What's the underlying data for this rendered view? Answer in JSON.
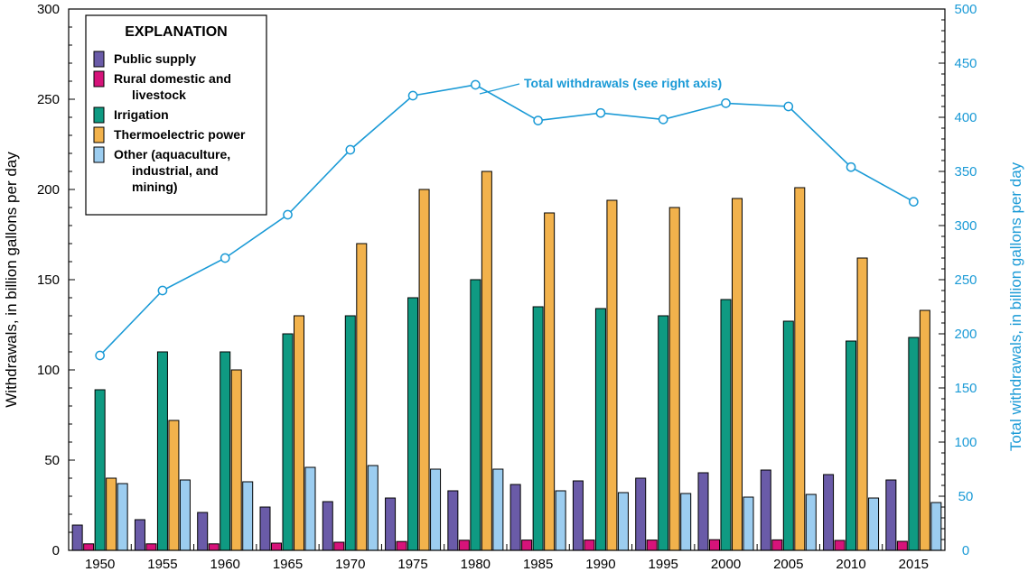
{
  "chart_data": {
    "type": "bar",
    "categories": [
      "1950",
      "1955",
      "1960",
      "1965",
      "1970",
      "1975",
      "1980",
      "1985",
      "1990",
      "1995",
      "2000",
      "2005",
      "2010",
      "2015"
    ],
    "series": [
      {
        "name": "Public supply",
        "color": "#6a5ba8",
        "values": [
          14,
          17,
          21,
          24,
          27,
          29,
          33,
          36.5,
          38.5,
          40,
          43,
          44.5,
          42,
          39
        ]
      },
      {
        "name": "Rural domestic and livestock",
        "color": "#d6137a",
        "values": [
          3.6,
          3.6,
          3.6,
          4,
          4.5,
          4.9,
          5.6,
          5.7,
          5.7,
          5.7,
          5.9,
          5.8,
          5.5,
          5
        ]
      },
      {
        "name": "Irrigation",
        "color": "#0f9a82",
        "values": [
          89,
          110,
          110,
          120,
          130,
          140,
          150,
          135,
          134,
          130,
          139,
          127,
          116,
          118
        ]
      },
      {
        "name": "Thermoelectric power",
        "color": "#f2b24c",
        "values": [
          40,
          72,
          100,
          130,
          170,
          200,
          210,
          187,
          194,
          190,
          195,
          201,
          162,
          133
        ]
      },
      {
        "name": "Other (aquaculture, industrial, and mining)",
        "color": "#9ccdf0",
        "values": [
          37,
          39,
          38,
          46,
          47,
          45,
          45,
          33,
          32,
          31.5,
          29.5,
          31,
          29,
          26.5
        ]
      }
    ],
    "total_withdrawals": {
      "name": "Total withdrawals",
      "axis": "right",
      "color": "#1a9ad6",
      "values": [
        180,
        240,
        270,
        310,
        370,
        420,
        430,
        397,
        404,
        398,
        413,
        410,
        354,
        322
      ]
    },
    "ylabel": "Withdrawals, in billion gallons per day",
    "ylabel_right": "Total withdrawals, in billion gallons per day",
    "ylim": [
      0,
      300
    ],
    "ylim_right": [
      0,
      500
    ],
    "yticks": [
      "0",
      "50",
      "100",
      "150",
      "200",
      "250",
      "300"
    ],
    "yticks_right": [
      "0",
      "50",
      "100",
      "150",
      "200",
      "250",
      "300",
      "350",
      "400",
      "450",
      "500"
    ],
    "legend": {
      "title": "EXPLANATION",
      "placement": "top-left",
      "entries": [
        {
          "lines": [
            "Public supply"
          ]
        },
        {
          "lines": [
            "Rural domestic and",
            "livestock"
          ]
        },
        {
          "lines": [
            "Irrigation"
          ]
        },
        {
          "lines": [
            "Thermoelectric power"
          ]
        },
        {
          "lines": [
            "Other (aquaculture,",
            "industrial, and",
            "mining)"
          ]
        }
      ]
    },
    "annotation": {
      "bold": "Total withdrawals",
      "normal": " (see right axis)"
    },
    "grid": false
  }
}
